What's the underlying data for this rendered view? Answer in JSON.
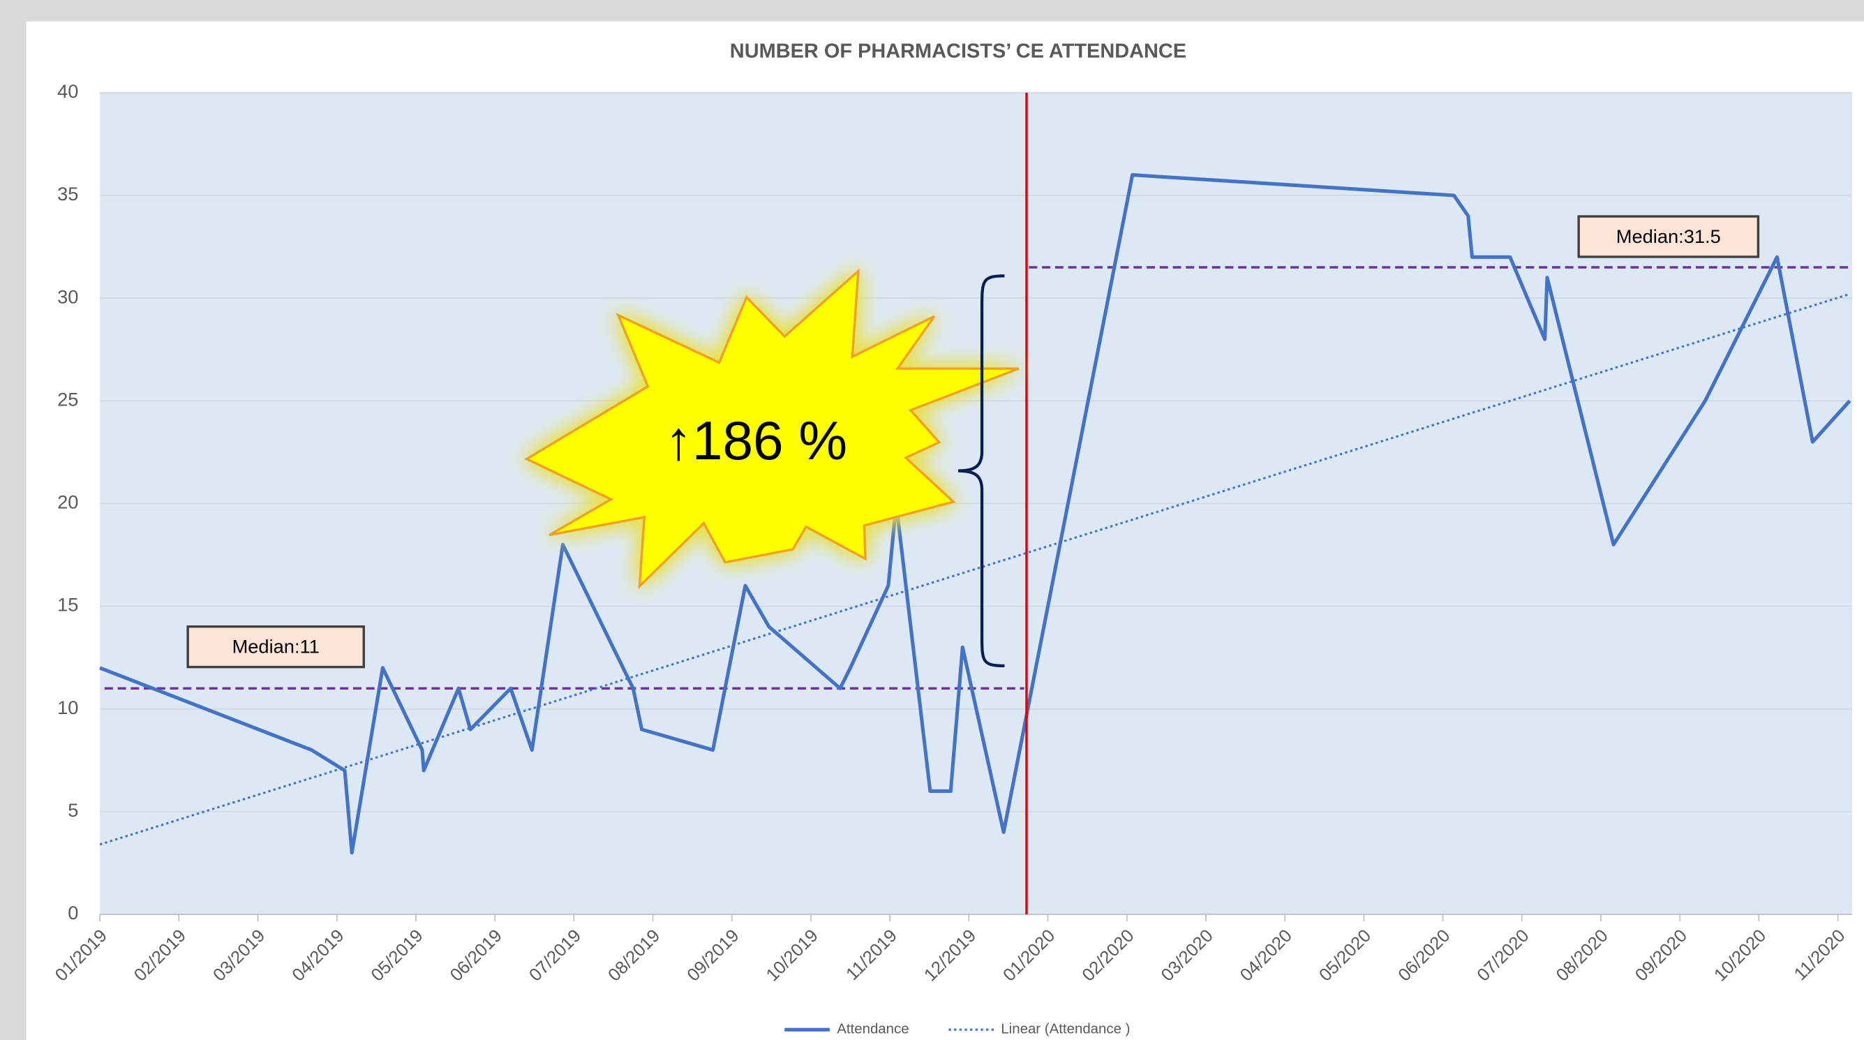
{
  "chart_data": {
    "type": "line",
    "title": "NUMBER OF PHARMACISTS’ CE ATTENDANCE",
    "xlim": [
      0,
      22.18
    ],
    "xticks": [
      {
        "value": 0,
        "label": "01/2019"
      },
      {
        "value": 1,
        "label": "02/2019"
      },
      {
        "value": 2,
        "label": "03/2019"
      },
      {
        "value": 3,
        "label": "04/2019"
      },
      {
        "value": 4,
        "label": "05/2019"
      },
      {
        "value": 5,
        "label": "06/2019"
      },
      {
        "value": 6,
        "label": "07/2019"
      },
      {
        "value": 7,
        "label": "08/2019"
      },
      {
        "value": 8,
        "label": "09/2019"
      },
      {
        "value": 9,
        "label": "10/2019"
      },
      {
        "value": 10,
        "label": "11/2019"
      },
      {
        "value": 11,
        "label": "12/2019"
      },
      {
        "value": 12,
        "label": "01/2020"
      },
      {
        "value": 13,
        "label": "02/2020"
      },
      {
        "value": 14,
        "label": "03/2020"
      },
      {
        "value": 15,
        "label": "04/2020"
      },
      {
        "value": 16,
        "label": "05/2020"
      },
      {
        "value": 17,
        "label": "06/2020"
      },
      {
        "value": 18,
        "label": "07/2020"
      },
      {
        "value": 19,
        "label": "08/2020"
      },
      {
        "value": 20,
        "label": "09/2020"
      },
      {
        "value": 21,
        "label": "10/2020"
      },
      {
        "value": 22,
        "label": "11/2020"
      }
    ],
    "ylim": [
      0,
      40
    ],
    "yticks": [
      0,
      5,
      10,
      15,
      20,
      25,
      30,
      35,
      40
    ],
    "grid": true,
    "series": [
      {
        "name": "Attendance",
        "color": "#4472c4",
        "style": "solid",
        "x": [
          0,
          2.68,
          3.1,
          3.19,
          3.58,
          4.08,
          4.1,
          4.54,
          4.69,
          5.2,
          5.47,
          5.86,
          6.75,
          6.86,
          7.76,
          8.17,
          8.47,
          9.37,
          9.5,
          9.98,
          10.08,
          10.51,
          10.77,
          10.92,
          11.44,
          13.07,
          17.14,
          17.32,
          17.37,
          17.85,
          18.29,
          18.32,
          19.16,
          20.32,
          21.23,
          21.68,
          22.15
        ],
        "values": [
          12,
          8,
          7,
          3,
          12,
          8,
          7,
          11,
          9,
          11,
          8,
          18,
          11,
          9,
          8,
          16,
          14,
          11,
          12,
          16,
          20,
          6,
          6,
          13,
          4,
          36,
          35,
          34,
          32,
          32,
          28,
          31,
          18,
          25,
          32,
          23,
          25
        ]
      },
      {
        "name": "Linear (Attendance )",
        "color": "#4472c4",
        "style": "dotted",
        "x": [
          0,
          22.15
        ],
        "values": [
          3.4,
          30.2
        ]
      }
    ],
    "medians": [
      {
        "label": "Median:11",
        "value": 11,
        "from": 0,
        "to": 11.7,
        "color": "#7030a0"
      },
      {
        "label": "Median:31.5",
        "value": 31.5,
        "from": 11.7,
        "to": 22.18,
        "color": "#7030a0"
      }
    ],
    "reference_line": {
      "x": 11.73,
      "color": "#e00000"
    },
    "annotation": "↑186 %"
  }
}
